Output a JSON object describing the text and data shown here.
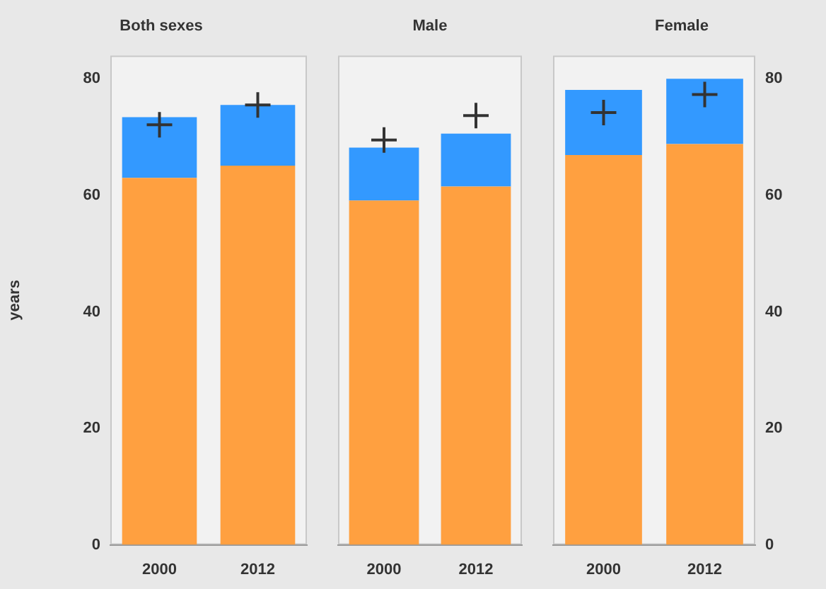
{
  "chart_data": [
    {
      "type": "bar",
      "title": "Both sexes",
      "ylabel": "years",
      "categories": [
        "2000",
        "2012"
      ],
      "stacked": true,
      "ylim": [
        0,
        84
      ],
      "yticks": [
        0,
        20,
        40,
        60,
        80
      ],
      "grid": false,
      "legend": false,
      "series": [
        {
          "color": "#ffa040",
          "values": [
            63.0,
            65.1
          ]
        },
        {
          "color": "#3399ff",
          "values": [
            10.4,
            10.4
          ]
        },
        {
          "type": "scatter",
          "marker": "cross",
          "color": "#333333",
          "values": [
            72.1,
            75.5
          ]
        }
      ]
    },
    {
      "type": "bar",
      "title": "Male",
      "categories": [
        "2000",
        "2012"
      ],
      "stacked": true,
      "ylim": [
        0,
        84
      ],
      "yticks": [
        0,
        20,
        40,
        60,
        80
      ],
      "tick_labels": "x",
      "grid": false,
      "legend": false,
      "series": [
        {
          "color": "#ffa040",
          "values": [
            59.1,
            61.5
          ]
        },
        {
          "color": "#3399ff",
          "values": [
            9.1,
            9.1
          ]
        },
        {
          "type": "scatter",
          "marker": "cross",
          "color": "#333333",
          "values": [
            69.5,
            73.7
          ]
        }
      ]
    },
    {
      "type": "bar",
      "title": "Female",
      "categories": [
        "2000",
        "2012"
      ],
      "stacked": true,
      "y2lim": [
        0,
        84
      ],
      "y2ticks": [
        0,
        20,
        40,
        60,
        80
      ],
      "grid": false,
      "legend": false,
      "series": [
        {
          "axis": "y2",
          "color": "#ffa040",
          "values": [
            66.9,
            68.8
          ]
        },
        {
          "axis": "y2",
          "color": "#3399ff",
          "values": [
            11.2,
            11.2
          ]
        },
        {
          "axis": "y2",
          "type": "scatter",
          "marker": "cross",
          "color": "#333333",
          "values": [
            74.2,
            77.3
          ]
        }
      ]
    }
  ]
}
